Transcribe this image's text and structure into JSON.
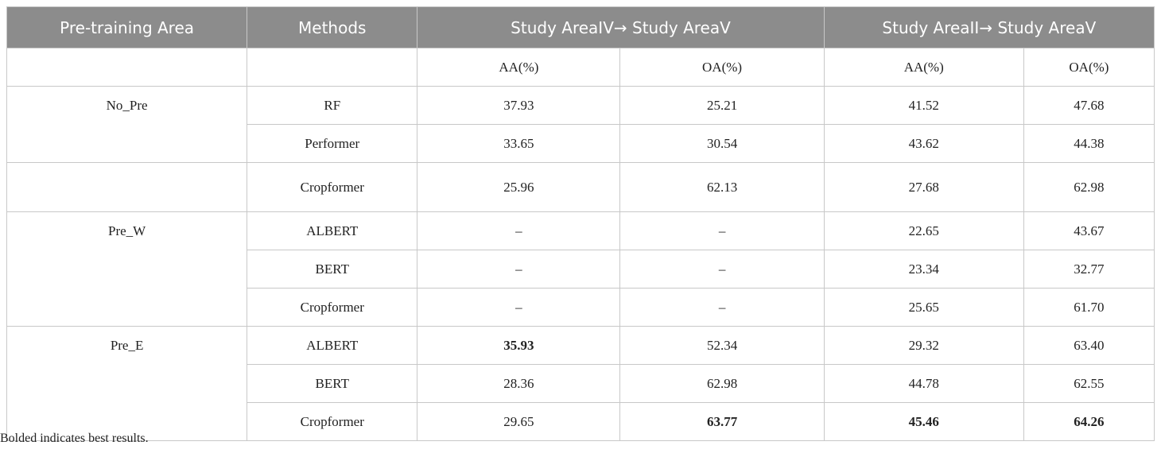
{
  "header": {
    "col_area": "Pre-training Area",
    "col_methods": "Methods",
    "group1": "Study AreaIV→ Study AreaV",
    "group2": "Study AreaII→ Study AreaV"
  },
  "subheader": {
    "g1_aa": "AA(%)",
    "g1_oa": "OA(%)",
    "g2_aa": "AA(%)",
    "g2_oa": "OA(%)"
  },
  "groups": [
    {
      "area": "No_Pre"
    },
    {
      "area": ""
    },
    {
      "area": "Pre_W"
    },
    {
      "area": "Pre_E"
    }
  ],
  "rows": [
    {
      "method": "RF",
      "g1_aa": "37.93",
      "g1_oa": "25.21",
      "g2_aa": "41.52",
      "g2_oa": "47.68"
    },
    {
      "method": "Performer",
      "g1_aa": "33.65",
      "g1_oa": "30.54",
      "g2_aa": "43.62",
      "g2_oa": "44.38"
    },
    {
      "method": "Cropformer",
      "g1_aa": "25.96",
      "g1_oa": "62.13",
      "g2_aa": "27.68",
      "g2_oa": "62.98"
    },
    {
      "method": "ALBERT",
      "g1_aa": "–",
      "g1_oa": "–",
      "g2_aa": "22.65",
      "g2_oa": "43.67"
    },
    {
      "method": "BERT",
      "g1_aa": "–",
      "g1_oa": "–",
      "g2_aa": "23.34",
      "g2_oa": "32.77"
    },
    {
      "method": "Cropformer",
      "g1_aa": "–",
      "g1_oa": "–",
      "g2_aa": "25.65",
      "g2_oa": "61.70"
    },
    {
      "method": "ALBERT",
      "g1_aa": "35.93",
      "g1_oa": "52.34",
      "g2_aa": "29.32",
      "g2_oa": "63.40"
    },
    {
      "method": "BERT",
      "g1_aa": "28.36",
      "g1_oa": "62.98",
      "g2_aa": "44.78",
      "g2_oa": "62.55"
    },
    {
      "method": "Cropformer",
      "g1_aa": "29.65",
      "g1_oa": "63.77",
      "g2_aa": "45.46",
      "g2_oa": "64.26"
    }
  ],
  "footnote": "Bolded indicates best results."
}
